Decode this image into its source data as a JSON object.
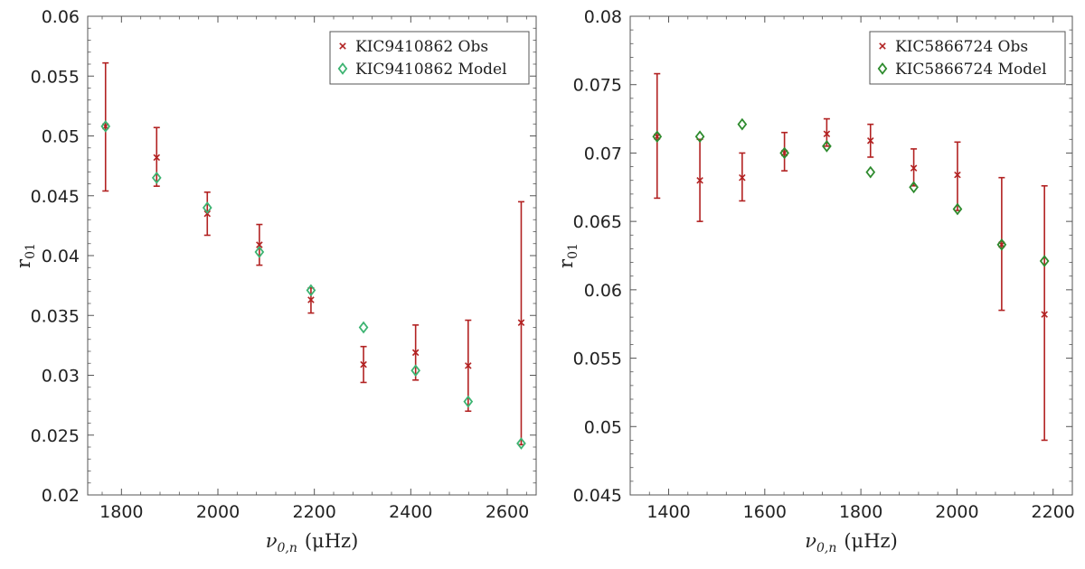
{
  "chart_data": [
    {
      "type": "scatter",
      "xlabel": "ν0,n (μHz)",
      "xlabel_main": "ν",
      "xlabel_sub": "0,n",
      "xlabel_unit": "(μHz)",
      "ylabel": "r01",
      "ylabel_main": "r",
      "ylabel_sub": "01",
      "xlim": [
        1730,
        2660
      ],
      "ylim": [
        0.02,
        0.06
      ],
      "xticks": [
        1800,
        2000,
        2200,
        2400,
        2600
      ],
      "yticks": [
        0.02,
        0.025,
        0.03,
        0.035,
        0.04,
        0.045,
        0.05,
        0.055,
        0.06
      ],
      "ytick_labels": [
        "0.02",
        "0.025",
        "0.03",
        "0.035",
        "0.04",
        "0.045",
        "0.05",
        "0.055",
        "0.06"
      ],
      "grid": false,
      "legend_position": "top-right",
      "series": [
        {
          "name": "KIC9410862 Obs",
          "marker": "x",
          "color": "#b22222",
          "x": [
            1767,
            1873,
            1978,
            2086,
            2193,
            2302,
            2410,
            2519,
            2629
          ],
          "y": [
            0.0508,
            0.0482,
            0.0435,
            0.0409,
            0.0363,
            0.0309,
            0.0319,
            0.0308,
            0.0344
          ],
          "yerr_low": [
            0.0454,
            0.0458,
            0.0417,
            0.0392,
            0.0352,
            0.0294,
            0.0296,
            0.027,
            0.0242
          ],
          "yerr_high": [
            0.0561,
            0.0507,
            0.0453,
            0.0426,
            0.0373,
            0.0324,
            0.0342,
            0.0346,
            0.0445
          ]
        },
        {
          "name": "KIC9410862 Model",
          "marker": "diamond",
          "color": "#3cb371",
          "x": [
            1767,
            1873,
            1978,
            2086,
            2193,
            2302,
            2410,
            2519,
            2629
          ],
          "y": [
            0.0508,
            0.0465,
            0.044,
            0.0403,
            0.0371,
            0.034,
            0.0304,
            0.0278,
            0.0243
          ]
        }
      ]
    },
    {
      "type": "scatter",
      "xlabel": "ν0,n (μHz)",
      "xlabel_main": "ν",
      "xlabel_sub": "0,n",
      "xlabel_unit": "(μHz)",
      "ylabel": "r01",
      "ylabel_main": "r",
      "ylabel_sub": "01",
      "xlim": [
        1320,
        2240
      ],
      "ylim": [
        0.045,
        0.08
      ],
      "xticks": [
        1400,
        1600,
        1800,
        2000,
        2200
      ],
      "yticks": [
        0.045,
        0.05,
        0.055,
        0.06,
        0.065,
        0.07,
        0.075,
        0.08
      ],
      "ytick_labels": [
        "0.045",
        "0.05",
        "0.055",
        "0.06",
        "0.065",
        "0.07",
        "0.075",
        "0.08"
      ],
      "grid": false,
      "legend_position": "top-right",
      "series": [
        {
          "name": "KIC5866724 Obs",
          "marker": "x",
          "color": "#b22222",
          "x": [
            1376,
            1465,
            1553,
            1641,
            1729,
            1820,
            1910,
            2001,
            2093,
            2182
          ],
          "y": [
            0.0712,
            0.068,
            0.0682,
            0.07,
            0.0714,
            0.0709,
            0.0689,
            0.0684,
            0.0633,
            0.0582
          ],
          "yerr_low": [
            0.0667,
            0.065,
            0.0665,
            0.0687,
            0.0705,
            0.0697,
            0.0676,
            0.0658,
            0.0585,
            0.049
          ],
          "yerr_high": [
            0.0758,
            0.071,
            0.07,
            0.0715,
            0.0725,
            0.0721,
            0.0703,
            0.0708,
            0.0682,
            0.0676
          ]
        },
        {
          "name": "KIC5866724 Model",
          "marker": "diamond",
          "color": "#2e8b2e",
          "x": [
            1376,
            1465,
            1553,
            1641,
            1729,
            1820,
            1910,
            2001,
            2093,
            2182
          ],
          "y": [
            0.0712,
            0.0712,
            0.0721,
            0.07,
            0.0705,
            0.0686,
            0.0675,
            0.0659,
            0.0633,
            0.0621
          ]
        }
      ]
    }
  ]
}
